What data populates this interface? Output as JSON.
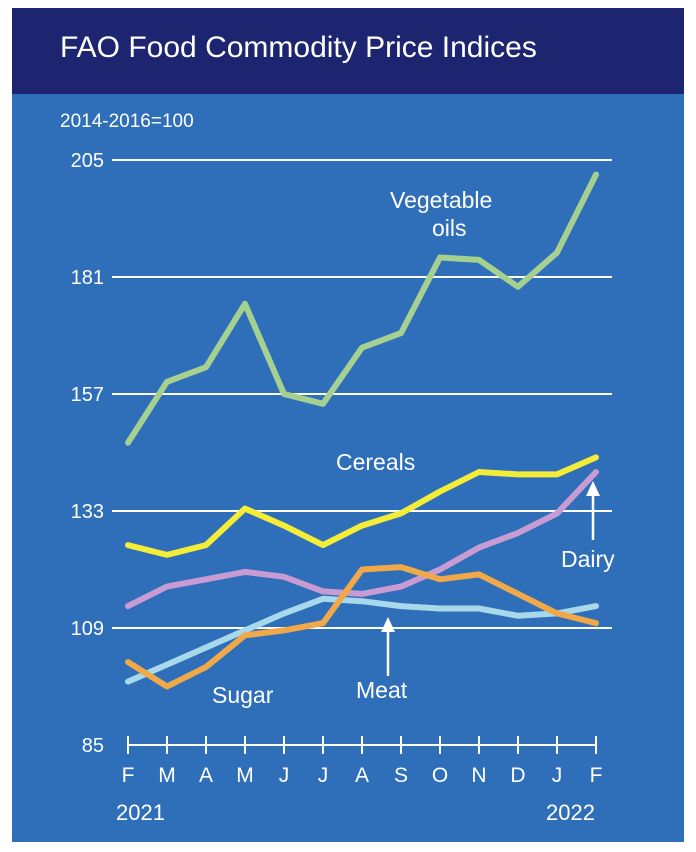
{
  "chart_data": {
    "type": "line",
    "title": "FAO Food Commodity Price Indices",
    "subtitle": "2014-2016=100",
    "x": [
      "F",
      "M",
      "A",
      "M",
      "J",
      "J",
      "A",
      "S",
      "O",
      "N",
      "D",
      "J",
      "F"
    ],
    "year_start": "2021",
    "year_end": "2022",
    "ylim": [
      85,
      205
    ],
    "yticks": [
      85,
      109,
      133,
      157,
      181,
      205
    ],
    "grid": true,
    "series": [
      {
        "name": "Vegetable oils",
        "color": "#a5d08f",
        "values": [
          147,
          159.5,
          162.5,
          175.5,
          157,
          155,
          166.5,
          169.5,
          185,
          184.5,
          179,
          186,
          202
        ]
      },
      {
        "name": "Cereals",
        "color": "#f4ec36",
        "values": [
          126,
          124,
          126,
          133.5,
          130,
          126,
          130,
          132.5,
          137,
          141,
          140.5,
          140.5,
          144
        ]
      },
      {
        "name": "Dairy",
        "color": "#c99bd3",
        "values": [
          113.5,
          117.5,
          119,
          120.5,
          119.5,
          116.5,
          116,
          117.5,
          121,
          125.5,
          128.5,
          132.5,
          141
        ]
      },
      {
        "name": "Meat",
        "color": "#a8d9ea",
        "values": [
          98,
          101.5,
          105,
          108.5,
          112,
          115,
          114.5,
          113.5,
          113,
          113,
          111.5,
          112,
          113.5
        ]
      },
      {
        "name": "Sugar",
        "color": "#f0a848",
        "values": [
          102,
          97,
          101,
          107.5,
          108.5,
          110,
          121,
          121.5,
          119,
          120,
          116,
          112,
          110
        ]
      }
    ]
  }
}
